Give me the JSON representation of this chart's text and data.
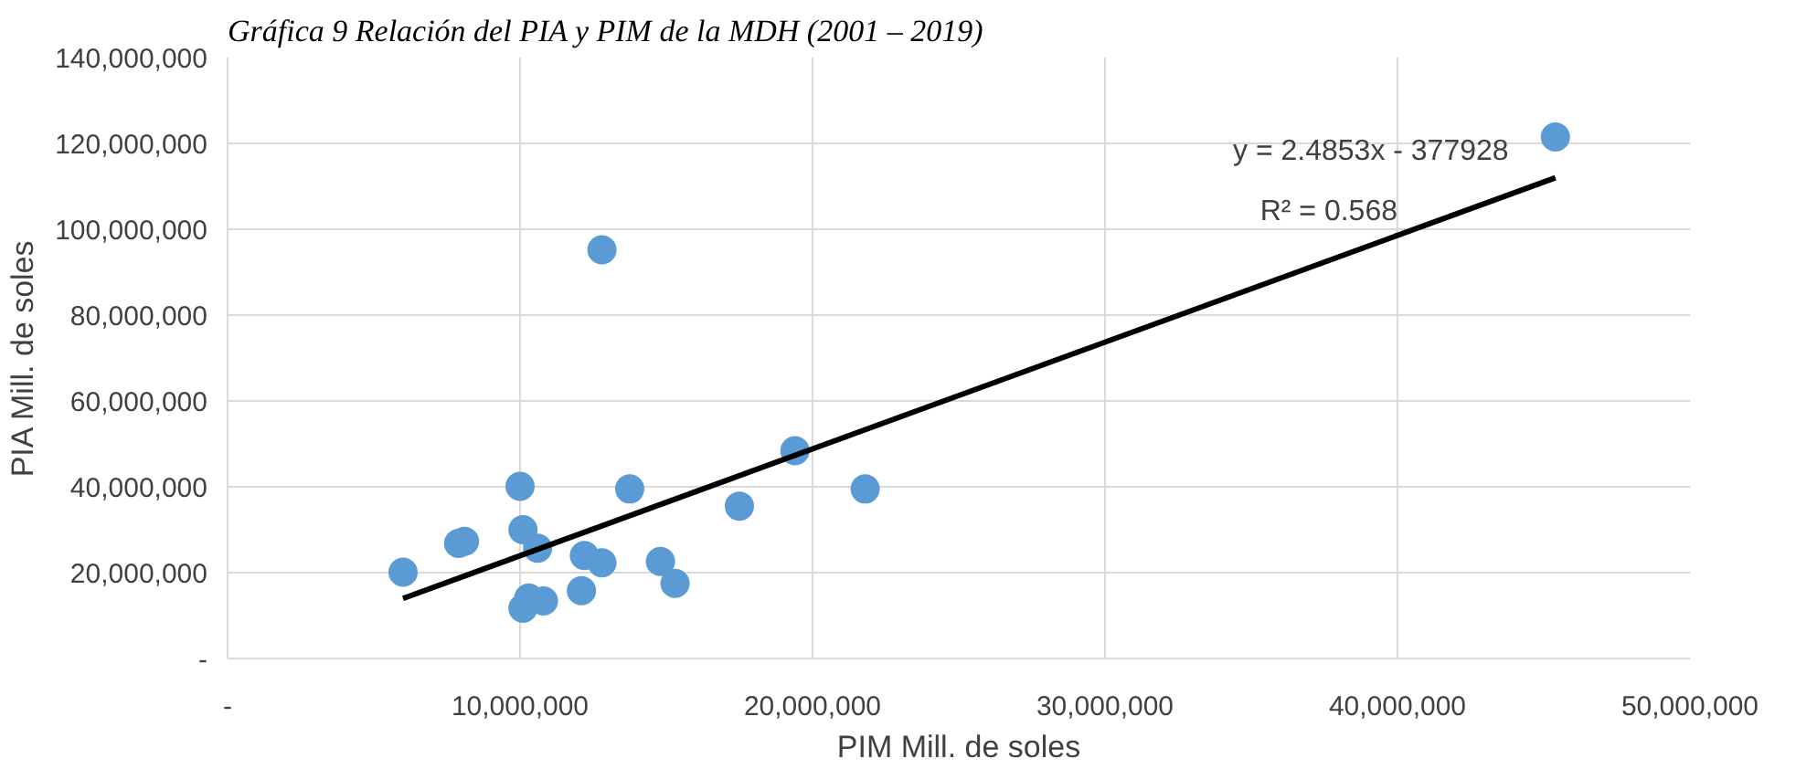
{
  "chart_data": {
    "type": "scatter",
    "title": "Gráfica 9 Relación del PIA y PIM de la MDH (2001 – 2019)",
    "xlabel": "PIM Mill. de soles",
    "ylabel": "PIA Mill. de soles",
    "series": [
      {
        "color": "#5b9bd5",
        "marker": "circle",
        "x": [
          6000000,
          7900000,
          8100000,
          10000000,
          10100000,
          10600000,
          10100000,
          10300000,
          10800000,
          12100000,
          12200000,
          12800000,
          13750000,
          14800000,
          15300000,
          17500000,
          19400000,
          21800000,
          12800000,
          45400000
        ],
        "values": [
          20100000,
          26800000,
          27300000,
          40100000,
          30000000,
          25700000,
          11700000,
          14100000,
          13400000,
          15800000,
          24000000,
          22300000,
          39500000,
          22600000,
          17500000,
          35500000,
          48400000,
          39500000,
          95200000,
          121500000
        ]
      },
      {
        "type": "line",
        "color": "#000000",
        "marker": "none",
        "line_style": "solid",
        "x": [
          6000000,
          45400000
        ],
        "values": [
          14000000,
          112000000
        ]
      }
    ],
    "annotations": [
      "y = 2.4853x - 377928",
      "R² = 0.568"
    ],
    "xlim": [
      0,
      50000000
    ],
    "ylim": [
      0,
      140000000
    ],
    "xticks": [
      {
        "value": 0,
        "label": "-"
      },
      {
        "value": 10000000,
        "label": "10,000,000"
      },
      {
        "value": 20000000,
        "label": "20,000,000"
      },
      {
        "value": 30000000,
        "label": "30,000,000"
      },
      {
        "value": 40000000,
        "label": "40,000,000"
      },
      {
        "value": 50000000,
        "label": "50,000,000"
      }
    ],
    "yticks": [
      {
        "value": 0,
        "label": "-"
      },
      {
        "value": 20000000,
        "label": "20,000,000"
      },
      {
        "value": 40000000,
        "label": "40,000,000"
      },
      {
        "value": 60000000,
        "label": "60,000,000"
      },
      {
        "value": 80000000,
        "label": "80,000,000"
      },
      {
        "value": 100000000,
        "label": "100,000,000"
      },
      {
        "value": 120000000,
        "label": "120,000,000"
      },
      {
        "value": 140000000,
        "label": "140,000,000"
      }
    ],
    "grid": true
  }
}
